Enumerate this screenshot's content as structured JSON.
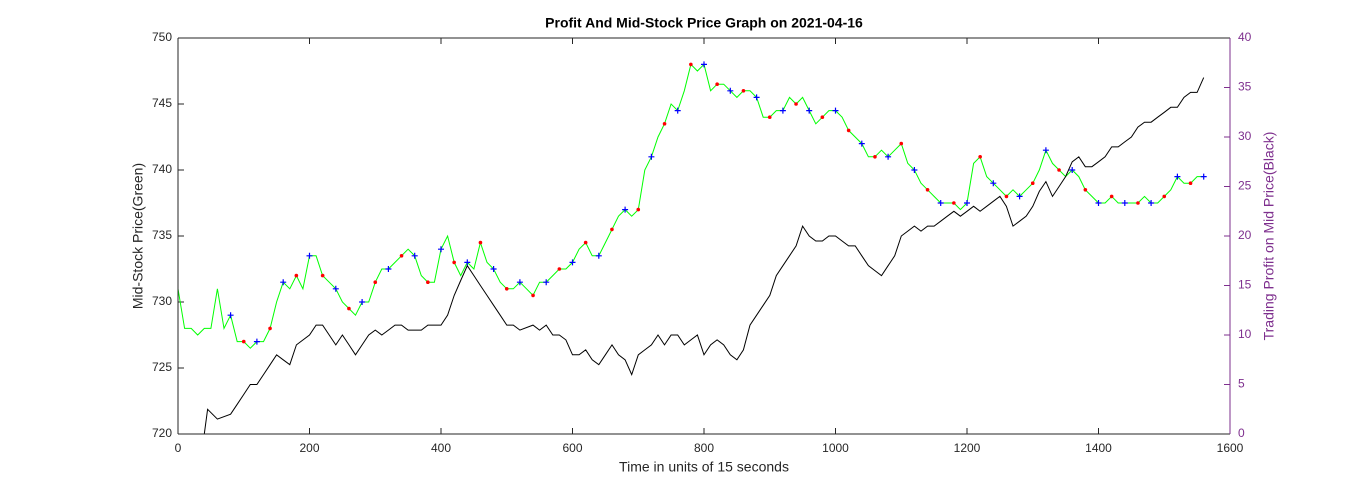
{
  "chart_data": {
    "type": "line",
    "title": "Profit And Mid-Stock Price Graph on 2021-04-16",
    "xlabel": "Time in units of 15 seconds",
    "ylabel": "Mid-Stock Price(Green)",
    "y2label": "Trading Profit on Mid Price(Black)",
    "xlim": [
      0,
      1600
    ],
    "xticks": [
      0,
      200,
      400,
      600,
      800,
      1000,
      1200,
      1400,
      1600
    ],
    "ylim": [
      720,
      750
    ],
    "yticks": [
      720,
      725,
      730,
      735,
      740,
      745,
      750
    ],
    "y2lim": [
      0,
      40
    ],
    "y2ticks": [
      0,
      5,
      10,
      15,
      20,
      25,
      30,
      35,
      40
    ],
    "y2color": "#7e2f8e",
    "series": [
      {
        "color": "#00ff00",
        "marker": "none",
        "x": [
          0,
          10,
          20,
          30,
          40,
          50,
          60,
          70,
          80,
          90,
          100,
          110,
          120,
          130,
          140,
          150,
          160,
          170,
          180,
          190,
          200,
          210,
          220,
          230,
          240,
          250,
          260,
          270,
          280,
          290,
          300,
          310,
          320,
          330,
          340,
          350,
          360,
          370,
          380,
          390,
          400,
          410,
          420,
          430,
          440,
          450,
          460,
          470,
          480,
          490,
          500,
          510,
          520,
          530,
          540,
          550,
          560,
          570,
          580,
          590,
          600,
          610,
          620,
          630,
          640,
          650,
          660,
          670,
          680,
          690,
          700,
          710,
          720,
          730,
          740,
          750,
          760,
          770,
          780,
          790,
          800,
          810,
          820,
          830,
          840,
          850,
          860,
          870,
          880,
          890,
          900,
          910,
          920,
          930,
          940,
          950,
          960,
          970,
          980,
          990,
          1000,
          1010,
          1020,
          1030,
          1040,
          1050,
          1060,
          1070,
          1080,
          1090,
          1100,
          1110,
          1120,
          1130,
          1140,
          1150,
          1160,
          1170,
          1180,
          1190,
          1200,
          1210,
          1220,
          1230,
          1240,
          1250,
          1260,
          1270,
          1280,
          1290,
          1300,
          1310,
          1320,
          1330,
          1340,
          1350,
          1360,
          1370,
          1380,
          1390,
          1400,
          1410,
          1420,
          1430,
          1440,
          1450,
          1460,
          1470,
          1480,
          1490,
          1500,
          1510,
          1520,
          1530,
          1540,
          1550,
          1560
        ],
        "values": [
          731,
          728,
          728,
          727.5,
          728,
          728,
          731,
          728,
          729,
          727,
          727,
          726.5,
          727,
          727,
          728,
          730,
          731.5,
          731,
          732,
          731,
          733.5,
          733.5,
          732,
          731.5,
          731,
          730,
          729.5,
          729,
          730,
          730,
          731.5,
          732.5,
          732.5,
          733,
          733.5,
          734,
          733.5,
          732,
          731.5,
          731.5,
          734,
          735,
          733,
          732,
          733,
          732.5,
          734.5,
          733,
          732.5,
          731.5,
          731,
          731,
          731.5,
          731,
          730.5,
          731.5,
          731.5,
          732,
          732.5,
          732.5,
          733,
          734,
          734.5,
          733.5,
          733.5,
          734.5,
          735.5,
          736.5,
          737,
          736.5,
          737,
          740,
          741,
          742.5,
          743.5,
          745,
          744.5,
          746,
          748,
          747.5,
          748,
          746,
          746.5,
          746.5,
          746,
          745.5,
          746,
          746,
          745.5,
          744,
          744,
          744.5,
          744.5,
          745.5,
          745,
          745.5,
          744.5,
          743.5,
          744,
          744.5,
          744.5,
          744,
          743,
          742.5,
          742,
          741,
          741,
          741.5,
          741,
          741.5,
          742,
          740.5,
          740,
          739,
          738.5,
          738,
          737.5,
          737.5,
          737.5,
          737,
          737.5,
          740.5,
          741,
          739.5,
          739,
          738.5,
          738,
          738.5,
          738,
          738.5,
          739,
          740,
          741.5,
          740.5,
          740,
          739.5,
          740,
          739.5,
          738.5,
          738,
          737.5,
          737.5,
          738,
          737.5,
          737.5,
          737.5,
          737.5,
          738,
          737.5,
          737.5,
          738,
          738.5,
          739.5,
          739,
          739,
          739.5,
          739.5
        ]
      },
      {
        "color": "#000000",
        "marker": "none",
        "axis": "y2",
        "x": [
          0,
          40,
          45,
          60,
          80,
          90,
          100,
          110,
          120,
          130,
          140,
          150,
          160,
          170,
          180,
          200,
          210,
          220,
          230,
          240,
          250,
          260,
          270,
          280,
          290,
          300,
          310,
          320,
          330,
          340,
          350,
          360,
          370,
          380,
          390,
          400,
          410,
          420,
          430,
          440,
          450,
          460,
          470,
          480,
          490,
          500,
          510,
          520,
          540,
          550,
          560,
          570,
          580,
          590,
          600,
          610,
          620,
          630,
          640,
          650,
          660,
          670,
          680,
          690,
          700,
          710,
          720,
          730,
          740,
          750,
          760,
          770,
          780,
          790,
          800,
          810,
          820,
          830,
          840,
          850,
          860,
          870,
          880,
          890,
          900,
          910,
          920,
          930,
          940,
          950,
          960,
          970,
          980,
          990,
          1000,
          1010,
          1020,
          1030,
          1040,
          1050,
          1060,
          1070,
          1080,
          1090,
          1100,
          1110,
          1120,
          1130,
          1140,
          1150,
          1160,
          1170,
          1180,
          1190,
          1200,
          1210,
          1220,
          1230,
          1240,
          1250,
          1260,
          1270,
          1280,
          1290,
          1300,
          1310,
          1320,
          1330,
          1340,
          1350,
          1360,
          1370,
          1380,
          1390,
          1400,
          1410,
          1420,
          1430,
          1440,
          1450,
          1460,
          1470,
          1480,
          1490,
          1500,
          1510,
          1520,
          1530,
          1540,
          1550,
          1560
        ],
        "values": [
          0,
          0,
          2.5,
          1.5,
          2,
          3,
          4,
          5,
          5,
          6,
          7,
          8,
          7.5,
          7,
          9,
          10,
          11,
          11,
          10,
          9,
          10,
          9,
          8,
          9,
          10,
          10.5,
          10,
          10.5,
          11,
          11,
          10.5,
          10.5,
          10.5,
          11,
          11,
          11,
          12,
          14,
          15.5,
          17,
          16,
          15,
          14,
          13,
          12,
          11,
          11,
          10.5,
          11,
          10.5,
          11,
          10,
          10,
          9.5,
          8,
          8,
          8.5,
          7.5,
          7,
          8,
          9,
          8,
          7.5,
          6,
          8,
          8.5,
          9,
          10,
          9,
          10,
          10,
          9,
          9.5,
          10,
          8,
          9,
          9.5,
          9,
          8,
          7.5,
          8.5,
          11,
          12,
          13,
          14,
          16,
          17,
          18,
          19,
          21,
          20,
          19.5,
          19.5,
          20,
          20,
          19.5,
          19,
          19,
          18,
          17,
          16.5,
          16,
          17,
          18,
          20,
          20.5,
          21,
          20.5,
          21,
          21,
          21.5,
          22,
          22.5,
          22,
          22.5,
          23,
          22.5,
          23,
          23.5,
          24,
          23,
          21,
          21.5,
          22,
          23,
          24.5,
          25.5,
          24,
          25,
          26,
          27.5,
          28,
          27,
          27,
          27.5,
          28,
          29,
          29,
          29.5,
          30,
          31,
          31.5,
          31.5,
          32,
          32.5,
          33,
          33,
          34,
          34.5,
          34.5,
          36
        ]
      },
      {
        "color": "#0000ff",
        "marker": "+",
        "x": [
          80,
          120,
          160,
          200,
          240,
          280,
          320,
          360,
          400,
          440,
          480,
          520,
          560,
          600,
          640,
          680,
          720,
          760,
          800,
          840,
          880,
          920,
          960,
          1000,
          1040,
          1080,
          1120,
          1160,
          1200,
          1240,
          1280,
          1320,
          1360,
          1400,
          1440,
          1480,
          1520,
          1560
        ],
        "values": [
          729,
          727,
          731.5,
          733.5,
          731,
          730,
          732.5,
          733.5,
          734,
          733,
          732.5,
          731.5,
          731.5,
          733,
          733.5,
          737,
          741,
          744.5,
          748,
          746,
          745.5,
          744.5,
          744.5,
          744.5,
          742,
          741,
          740,
          737.5,
          737.5,
          739,
          738,
          741.5,
          740,
          737.5,
          737.5,
          737.5,
          739.5,
          739.5
        ]
      },
      {
        "color": "#ff0000",
        "marker": "o",
        "x": [
          100,
          140,
          180,
          220,
          260,
          300,
          340,
          380,
          420,
          460,
          500,
          540,
          580,
          620,
          660,
          700,
          740,
          780,
          820,
          860,
          900,
          940,
          980,
          1020,
          1060,
          1100,
          1140,
          1180,
          1220,
          1260,
          1300,
          1340,
          1380,
          1420,
          1460,
          1500,
          1540
        ],
        "values": [
          727,
          728,
          732,
          732,
          729.5,
          731.5,
          733.5,
          731.5,
          733,
          734.5,
          731,
          730.5,
          732.5,
          734.5,
          735.5,
          737,
          743.5,
          748,
          746.5,
          746,
          744,
          745,
          744,
          743,
          741,
          742,
          738.5,
          737.5,
          741,
          738,
          739,
          740,
          738.5,
          738,
          737.5,
          738,
          739
        ]
      }
    ]
  }
}
